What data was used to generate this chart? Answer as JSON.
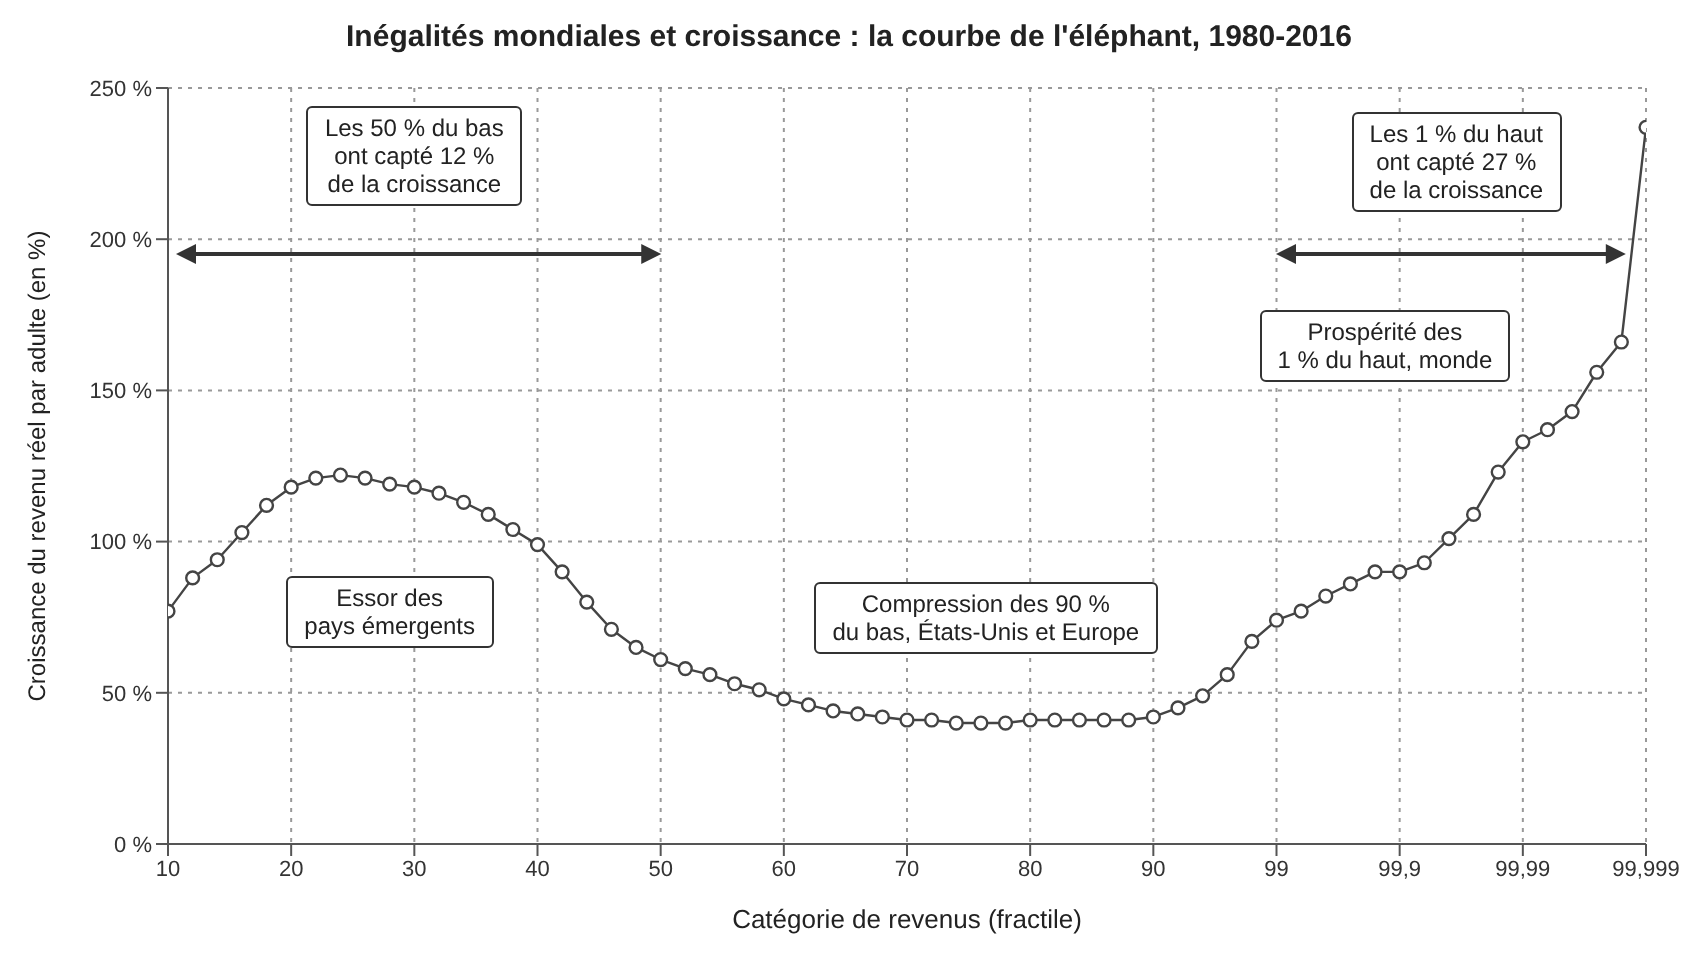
{
  "chart_data": {
    "type": "line",
    "title": "Inégalités mondiales et croissance : la courbe de l'éléphant, 1980-2016",
    "xlabel": "Catégorie de revenus (fractile)",
    "ylabel": "Croissance du revenu réel par adulte (en %)",
    "categories": [
      "10",
      null,
      null,
      null,
      null,
      "20",
      null,
      null,
      null,
      null,
      "30",
      null,
      null,
      null,
      null,
      "40",
      null,
      null,
      null,
      null,
      "50",
      null,
      null,
      null,
      null,
      "60",
      null,
      null,
      null,
      null,
      "70",
      null,
      null,
      null,
      null,
      "80",
      null,
      null,
      null,
      null,
      "90",
      null,
      null,
      null,
      null,
      "99",
      null,
      null,
      null,
      null,
      "99,9",
      null,
      null,
      null,
      null,
      "99,99",
      null,
      null,
      null,
      null,
      "99,999"
    ],
    "series": [
      {
        "color": "#444444",
        "values": [
          77,
          88,
          94,
          103,
          112,
          118,
          121,
          122,
          121,
          119,
          118,
          116,
          113,
          109,
          104,
          99,
          90,
          80,
          71,
          65,
          61,
          58,
          56,
          53,
          51,
          48,
          46,
          44,
          43,
          42,
          41,
          41,
          40,
          40,
          40,
          41,
          41,
          41,
          41,
          41,
          42,
          45,
          49,
          56,
          67,
          74,
          77,
          82,
          86,
          90,
          90,
          93,
          101,
          109,
          123,
          133,
          137,
          143,
          156,
          166,
          237
        ]
      }
    ],
    "ylim": [
      0,
      250
    ],
    "yticks": [
      {
        "value": 0,
        "label": "0 %"
      },
      {
        "value": 50,
        "label": "50 %"
      },
      {
        "value": 100,
        "label": "100 %"
      },
      {
        "value": 150,
        "label": "150 %"
      },
      {
        "value": 200,
        "label": "200 %"
      },
      {
        "value": 250,
        "label": "250 %"
      }
    ],
    "grid": true,
    "marker": "circle",
    "line_style": "solid",
    "annotations": [
      "Les 50 % du bas\nont capté 12 %\nde la croissance",
      "Les 1 % du haut\nont capté 27 %\nde la croissance",
      "Essor des\npays émergents",
      "Compression des 90 %\ndu bas, États-Unis et Europe",
      "Prospérité des\n1 % du haut, monde"
    ]
  }
}
